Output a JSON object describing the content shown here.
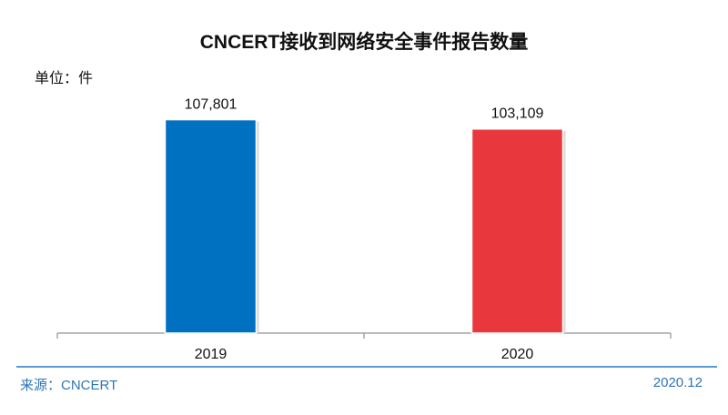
{
  "chart_data": {
    "type": "bar",
    "title": "CNCERT接收到网络安全事件报告数量",
    "unit_label": "单位：件",
    "categories": [
      "2019",
      "2020"
    ],
    "values": [
      107801,
      103109
    ],
    "value_labels": [
      "107,801",
      "103,109"
    ],
    "colors": [
      "#0070c0",
      "#e8383d"
    ],
    "ylim": [
      0,
      120000
    ],
    "grid": false,
    "legend": "none"
  },
  "footer": {
    "source": "来源：CNCERT",
    "date": "2020.12"
  }
}
